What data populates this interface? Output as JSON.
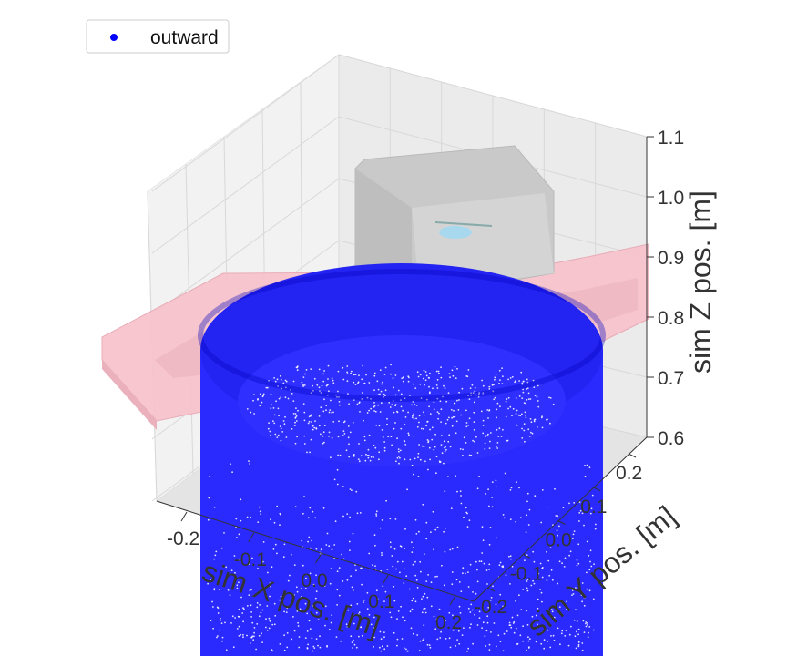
{
  "chart_data": {
    "type": "scatter",
    "projection": "3d",
    "title": "",
    "legend": {
      "placement": "top-left",
      "entries": [
        {
          "name": "outward",
          "color": "#0000ff"
        }
      ]
    },
    "xlabel": "sim X pos. [m]",
    "ylabel": "sim Y pos. [m]",
    "zlabel": "sim Z pos. [m]",
    "xticks": [
      "-0.2",
      "-0.1",
      "0.0",
      "0.1",
      "0.2"
    ],
    "yticks": [
      "-0.2",
      "-0.1",
      "0.0",
      "0.1",
      "0.2"
    ],
    "zticks": [
      "0.6",
      "0.7",
      "0.8",
      "0.9",
      "1.0",
      "1.1"
    ],
    "xlim": [
      -0.25,
      0.25
    ],
    "ylim": [
      -0.25,
      0.25
    ],
    "zlim": [
      0.6,
      1.1
    ],
    "grid": true,
    "series": [
      {
        "name": "outward",
        "color": "#0000ff",
        "shape": "cylinder-surface",
        "center_x": 0.0,
        "center_y": 0.0,
        "radius": 0.22,
        "z_min": 0.6,
        "z_max": 0.88
      }
    ],
    "scene_objects": [
      {
        "name": "robot-base-frame",
        "color": "#ffc0cb"
      },
      {
        "name": "enclosure-box",
        "color": "#c8c8c8"
      }
    ]
  },
  "legend": {
    "label": "outward"
  },
  "axes": {
    "x_label": "sim X pos. [m]",
    "y_label": "sim Y pos. [m]",
    "z_label": "sim Z pos. [m]"
  }
}
